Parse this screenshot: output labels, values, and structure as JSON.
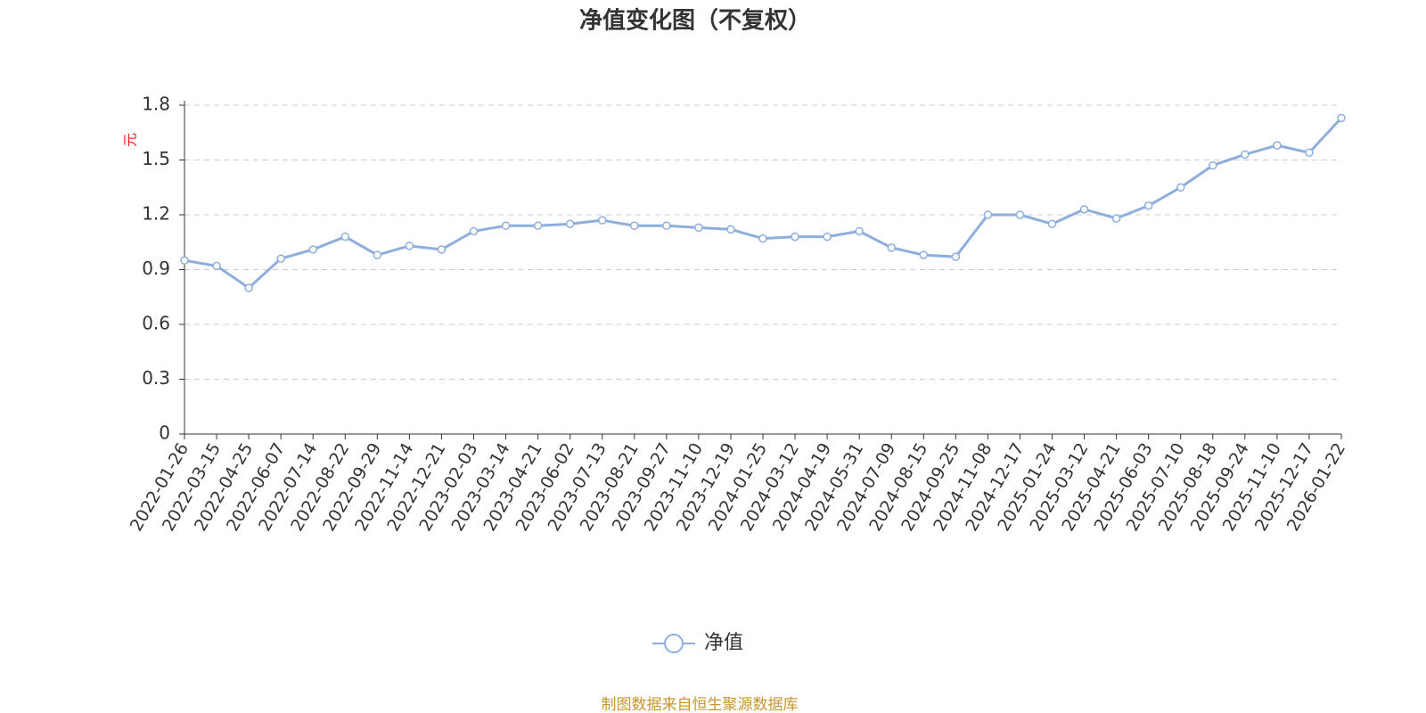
{
  "chart_data": {
    "type": "line",
    "title": "净值变化图（不复权）",
    "y_label": "元",
    "categories": [
      "2022-01-26",
      "2022-03-15",
      "2022-04-25",
      "2022-06-07",
      "2022-07-14",
      "2022-08-22",
      "2022-09-29",
      "2022-11-14",
      "2022-12-21",
      "2023-02-03",
      "2023-03-14",
      "2023-04-21",
      "2023-06-02",
      "2023-07-13",
      "2023-08-21",
      "2023-09-27",
      "2023-11-10",
      "2023-12-19",
      "2024-01-25",
      "2024-03-12",
      "2024-04-19",
      "2024-05-31",
      "2024-07-09",
      "2024-08-15",
      "2024-09-25",
      "2024-11-08",
      "2024-12-17",
      "2025-01-24",
      "2025-03-12",
      "2025-04-21",
      "2025-06-03",
      "2025-07-10",
      "2025-08-18",
      "2025-09-24",
      "2025-11-10",
      "2025-12-17",
      "2026-01-22"
    ],
    "series": [
      {
        "name": "净值",
        "color": "#8eaedd",
        "values": [
          0.95,
          0.92,
          0.8,
          0.96,
          1.01,
          1.08,
          0.98,
          1.03,
          1.01,
          1.11,
          1.14,
          1.14,
          1.15,
          1.17,
          1.14,
          1.14,
          1.13,
          1.12,
          1.07,
          1.08,
          1.08,
          1.11,
          1.02,
          0.98,
          0.97,
          1.2,
          1.2,
          1.15,
          1.23,
          1.18,
          1.25,
          1.35,
          1.47,
          1.53,
          1.58,
          1.54,
          1.73
        ]
      }
    ],
    "ylim": [
      0,
      1.8
    ],
    "yticks": [
      0,
      0.3,
      0.6,
      0.9,
      1.2,
      1.5,
      1.8
    ],
    "grid": true,
    "source": "制图数据来自恒生聚源数据库"
  }
}
